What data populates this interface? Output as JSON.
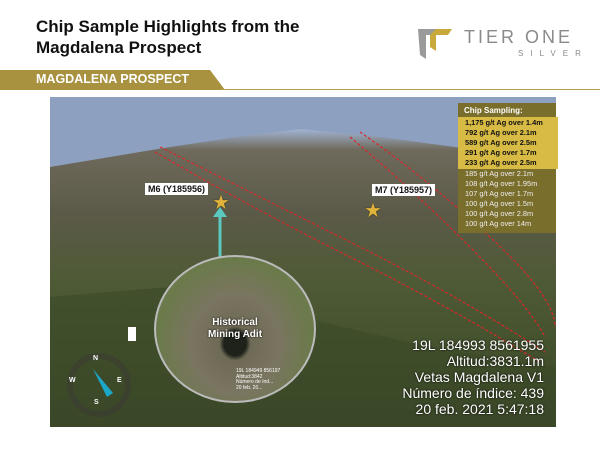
{
  "title": {
    "line1": "Chip Sample Highlights from the",
    "line2": "Magdalena Prospect"
  },
  "logo": {
    "name": "TIER ONE",
    "sub": "SILVER"
  },
  "banner": "MAGDALENA PROSPECT",
  "photo": {
    "samples": [
      {
        "label": "M6 (Y185956)"
      },
      {
        "label": "M7 (Y185957)"
      }
    ],
    "inset": {
      "label_line1": "Historical",
      "label_line2": "Mining Adit",
      "gps": [
        "19L 184949 856197",
        "Altitud:3842",
        "Número de índ...",
        "20 feb. 20..."
      ]
    },
    "gps_overlay": [
      "19L 184993 8561955",
      "Altitud:3831.1m",
      "Vetas Magdalena  V1",
      "Número de índice: 439",
      "20 feb. 2021 5:47:18"
    ],
    "compass": {
      "n": "N",
      "s": "S",
      "e": "E",
      "w": "W"
    }
  },
  "chip_sampling": {
    "title": "Chip Sampling:",
    "highlights": [
      "1,175 g/t Ag over 1.4m",
      "792 g/t Ag over 2.1m",
      "589 g/t Ag over 2.5m",
      "291 g/t Ag over 1.7m",
      "233 g/t Ag over 2.5m"
    ],
    "others": [
      "185 g/t Ag over 2.1m",
      "108 g/t Ag over 1.95m",
      "107 g/t Ag over 1.7m",
      "100 g/t Ag over 1.5m",
      "100 g/t Ag over 2.8m",
      "100 g/t Ag over 14m"
    ]
  },
  "colors": {
    "gold": "#a8913f",
    "highlight": "#d8bb45",
    "panel": "#7a6e2c",
    "accent_teal": "#5cc9c0",
    "vein_red": "#d8282a"
  }
}
